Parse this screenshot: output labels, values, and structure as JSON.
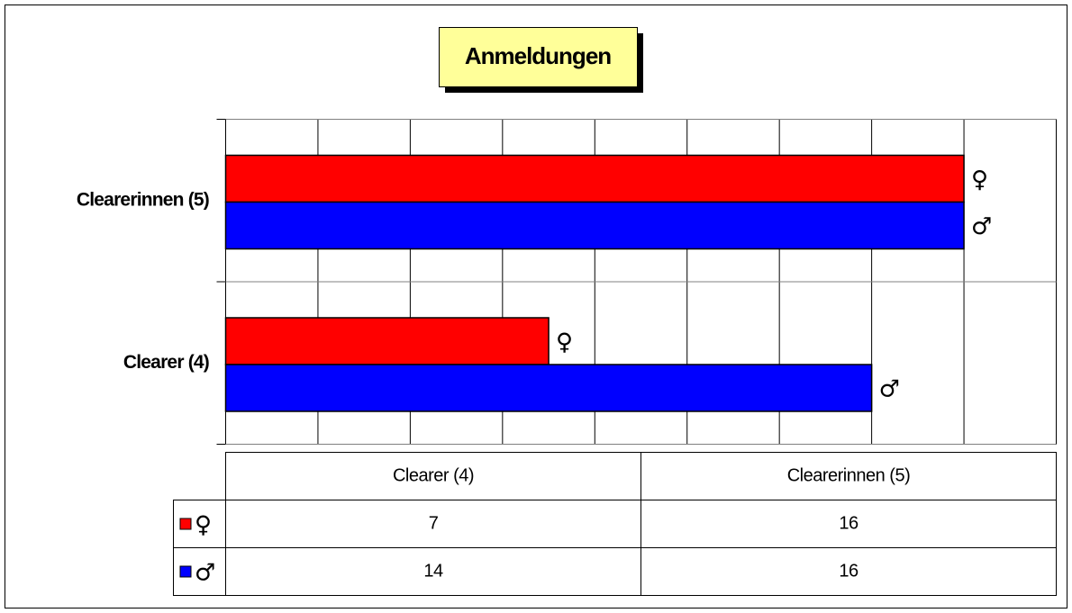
{
  "chart_data": {
    "type": "bar",
    "orientation": "horizontal",
    "title": "Anmeldungen",
    "categories": [
      "Clearer (4)",
      "Clearerinnen (5)"
    ],
    "series": [
      {
        "name": "♀",
        "color": "#ff0000",
        "values": [
          7,
          16
        ]
      },
      {
        "name": "♂",
        "color": "#0000ff",
        "values": [
          14,
          16
        ]
      }
    ],
    "xlim": [
      0,
      18
    ],
    "xticks": [
      0,
      2,
      4,
      6,
      8,
      10,
      12,
      14,
      16,
      18
    ],
    "grid": true,
    "data_table": true
  }
}
